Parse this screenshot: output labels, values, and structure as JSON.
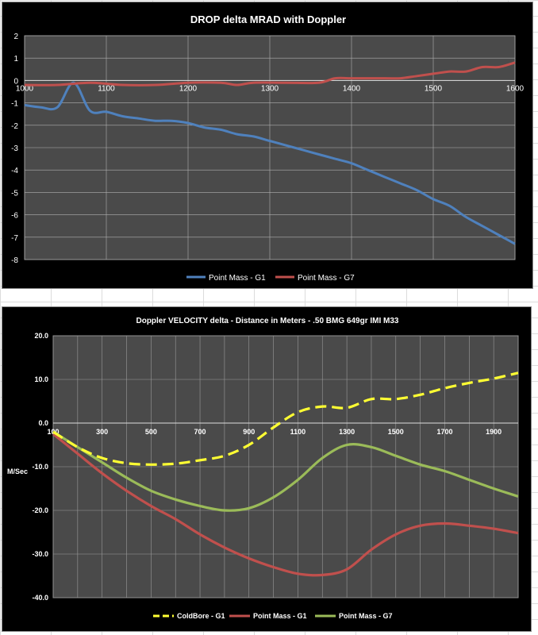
{
  "chart_data": [
    {
      "type": "line",
      "title": "DROP delta MRAD with Doppler",
      "xlim": [
        1000,
        1600
      ],
      "ylim": [
        -8,
        2
      ],
      "x_ticks": [
        "1000",
        "1100",
        "1200",
        "1300",
        "1400",
        "1500",
        "1600"
      ],
      "y_ticks": [
        "2",
        "1",
        "0",
        "-1",
        "-2",
        "-3",
        "-4",
        "-5",
        "-6",
        "-7",
        "-8"
      ],
      "grid": true,
      "legend_position": "bottom",
      "series": [
        {
          "name": "Point Mass - G1",
          "color": "#4f81bd",
          "x": [
            1000,
            1020,
            1040,
            1060,
            1080,
            1100,
            1120,
            1140,
            1160,
            1180,
            1200,
            1220,
            1240,
            1260,
            1280,
            1300,
            1320,
            1340,
            1360,
            1380,
            1400,
            1420,
            1440,
            1460,
            1480,
            1500,
            1520,
            1540,
            1560,
            1580,
            1600
          ],
          "y": [
            -1.1,
            -1.2,
            -1.2,
            -0.1,
            -1.35,
            -1.4,
            -1.6,
            -1.7,
            -1.8,
            -1.8,
            -1.9,
            -2.1,
            -2.2,
            -2.4,
            -2.5,
            -2.7,
            -2.9,
            -3.1,
            -3.3,
            -3.5,
            -3.7,
            -4.0,
            -4.3,
            -4.6,
            -4.9,
            -5.3,
            -5.6,
            -6.1,
            -6.5,
            -6.9,
            -7.3
          ]
        },
        {
          "name": "Point Mass - G7",
          "color": "#c0504d",
          "x": [
            1000,
            1040,
            1080,
            1120,
            1160,
            1200,
            1240,
            1260,
            1280,
            1320,
            1360,
            1380,
            1400,
            1440,
            1460,
            1480,
            1500,
            1520,
            1540,
            1560,
            1580,
            1600
          ],
          "y": [
            -0.2,
            -0.2,
            -0.1,
            -0.2,
            -0.2,
            -0.1,
            -0.1,
            -0.2,
            -0.1,
            -0.1,
            -0.1,
            0.1,
            0.1,
            0.1,
            0.1,
            0.2,
            0.3,
            0.4,
            0.4,
            0.6,
            0.6,
            0.8
          ]
        }
      ]
    },
    {
      "type": "line",
      "title": "Doppler VELOCITY  delta - Distance in Meters - .50 BMG 649gr IMI M33",
      "ylabel": "M/Sec",
      "xlim": [
        100,
        2000
      ],
      "ylim": [
        -40,
        20
      ],
      "x_ticks": [
        "100",
        "300",
        "500",
        "700",
        "900",
        "1100",
        "1300",
        "1500",
        "1700",
        "1900"
      ],
      "y_ticks": [
        "20.0",
        "10.0",
        "0.0",
        "-10.0",
        "-20.0",
        "-30.0",
        "-40.0"
      ],
      "grid": true,
      "legend_position": "bottom",
      "series": [
        {
          "name": "ColdBore - G1",
          "color": "#ffff33",
          "dashed": true,
          "x": [
            100,
            200,
            300,
            400,
            500,
            600,
            700,
            800,
            900,
            1000,
            1100,
            1200,
            1300,
            1400,
            1500,
            1600,
            1700,
            1800,
            1900,
            2000
          ],
          "y": [
            -2,
            -5.5,
            -8,
            -9.2,
            -9.5,
            -9.3,
            -8.5,
            -7.5,
            -5,
            -1,
            2.5,
            3.8,
            3.5,
            5.5,
            5.5,
            6.5,
            8,
            9.2,
            10.2,
            11.5
          ]
        },
        {
          "name": "Point Mass - G1",
          "color": "#c0504d",
          "dashed": false,
          "x": [
            100,
            200,
            300,
            400,
            500,
            600,
            700,
            800,
            900,
            1000,
            1100,
            1200,
            1300,
            1400,
            1500,
            1600,
            1700,
            1800,
            1900,
            2000
          ],
          "y": [
            -2.5,
            -7,
            -11.5,
            -15.5,
            -19,
            -22,
            -25.5,
            -28.5,
            -31,
            -33,
            -34.5,
            -34.8,
            -33.5,
            -29,
            -25.5,
            -23.5,
            -23,
            -23.5,
            -24.2,
            -25.2
          ]
        },
        {
          "name": "Point Mass - G7",
          "color": "#9bbb59",
          "dashed": false,
          "x": [
            100,
            200,
            300,
            400,
            500,
            600,
            700,
            800,
            900,
            1000,
            1100,
            1200,
            1300,
            1400,
            1500,
            1600,
            1700,
            1800,
            1900,
            2000
          ],
          "y": [
            -2,
            -5.5,
            -9,
            -12.5,
            -15.5,
            -17.5,
            -19,
            -20,
            -19.5,
            -17,
            -13,
            -8,
            -5,
            -5.5,
            -7.5,
            -9.5,
            -11,
            -13,
            -15,
            -16.8
          ]
        }
      ]
    }
  ]
}
